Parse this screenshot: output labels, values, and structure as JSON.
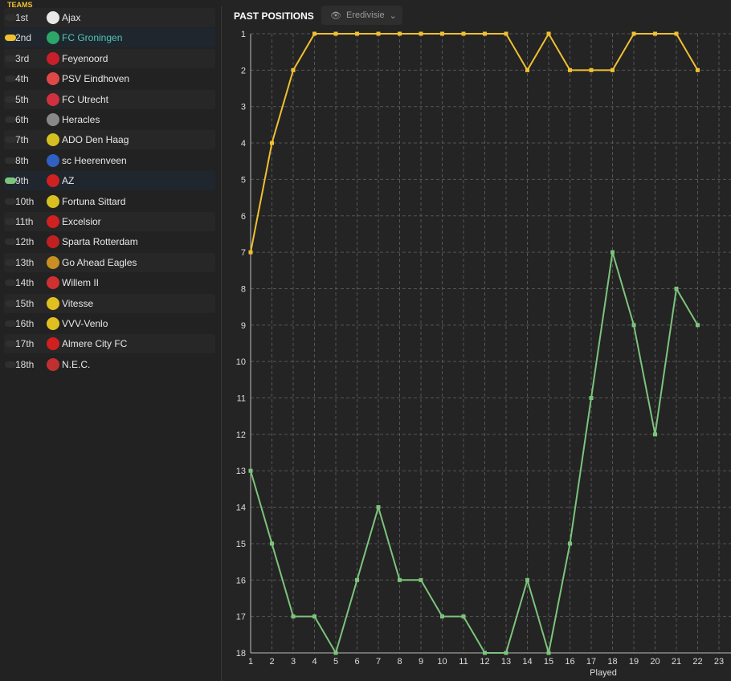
{
  "sidebar": {
    "header": "TEAMS",
    "teams": [
      {
        "pos": "1st",
        "name": "Ajax",
        "crest": "#e8e8e8"
      },
      {
        "pos": "2nd",
        "name": "FC Groningen",
        "crest": "#2ea66a",
        "selected": true,
        "marker": "#f0c030"
      },
      {
        "pos": "3rd",
        "name": "Feyenoord",
        "crest": "#c8202a"
      },
      {
        "pos": "4th",
        "name": "PSV Eindhoven",
        "crest": "#e04848"
      },
      {
        "pos": "5th",
        "name": "FC Utrecht",
        "crest": "#d03040"
      },
      {
        "pos": "6th",
        "name": "Heracles",
        "crest": "#888"
      },
      {
        "pos": "7th",
        "name": "ADO Den Haag",
        "crest": "#d4c020"
      },
      {
        "pos": "8th",
        "name": "sc Heerenveen",
        "crest": "#3060c0"
      },
      {
        "pos": "9th",
        "name": "AZ",
        "crest": "#d02020",
        "selected": true,
        "marker": "#7cc47c"
      },
      {
        "pos": "10th",
        "name": "Fortuna Sittard",
        "crest": "#d8c020"
      },
      {
        "pos": "11th",
        "name": "Excelsior",
        "crest": "#d02020"
      },
      {
        "pos": "12th",
        "name": "Sparta Rotterdam",
        "crest": "#c02020"
      },
      {
        "pos": "13th",
        "name": "Go Ahead Eagles",
        "crest": "#c89020"
      },
      {
        "pos": "14th",
        "name": "Willem II",
        "crest": "#d03030"
      },
      {
        "pos": "15th",
        "name": "Vitesse",
        "crest": "#e0c020"
      },
      {
        "pos": "16th",
        "name": "VVV-Venlo",
        "crest": "#e0c020"
      },
      {
        "pos": "17th",
        "name": "Almere City FC",
        "crest": "#d02020"
      },
      {
        "pos": "18th",
        "name": "N.E.C.",
        "crest": "#c03030"
      }
    ]
  },
  "header": {
    "title": "PAST POSITIONS",
    "competition": "Eredivisie",
    "view_icon": "eye-icon"
  },
  "chart_data": {
    "type": "line",
    "xlabel": "Played",
    "x": [
      1,
      2,
      3,
      4,
      5,
      6,
      7,
      8,
      9,
      10,
      11,
      12,
      13,
      14,
      15,
      16,
      17,
      18,
      19,
      20,
      21,
      22
    ],
    "xlim": [
      1,
      23
    ],
    "ylim": [
      1,
      18
    ],
    "y_inverted": true,
    "grid": true,
    "series": [
      {
        "team": "FC Groningen",
        "color": "#f0c030",
        "values": [
          7,
          4,
          2,
          1,
          1,
          1,
          1,
          1,
          1,
          1,
          1,
          1,
          1,
          2,
          1,
          2,
          2,
          2,
          1,
          1,
          1,
          2
        ]
      },
      {
        "team": "AZ",
        "color": "#7cc47c",
        "values": [
          13,
          15,
          17,
          17,
          18,
          16,
          14,
          16,
          16,
          17,
          17,
          18,
          18,
          16,
          18,
          15,
          11,
          7,
          9,
          12,
          8,
          9
        ]
      }
    ]
  }
}
